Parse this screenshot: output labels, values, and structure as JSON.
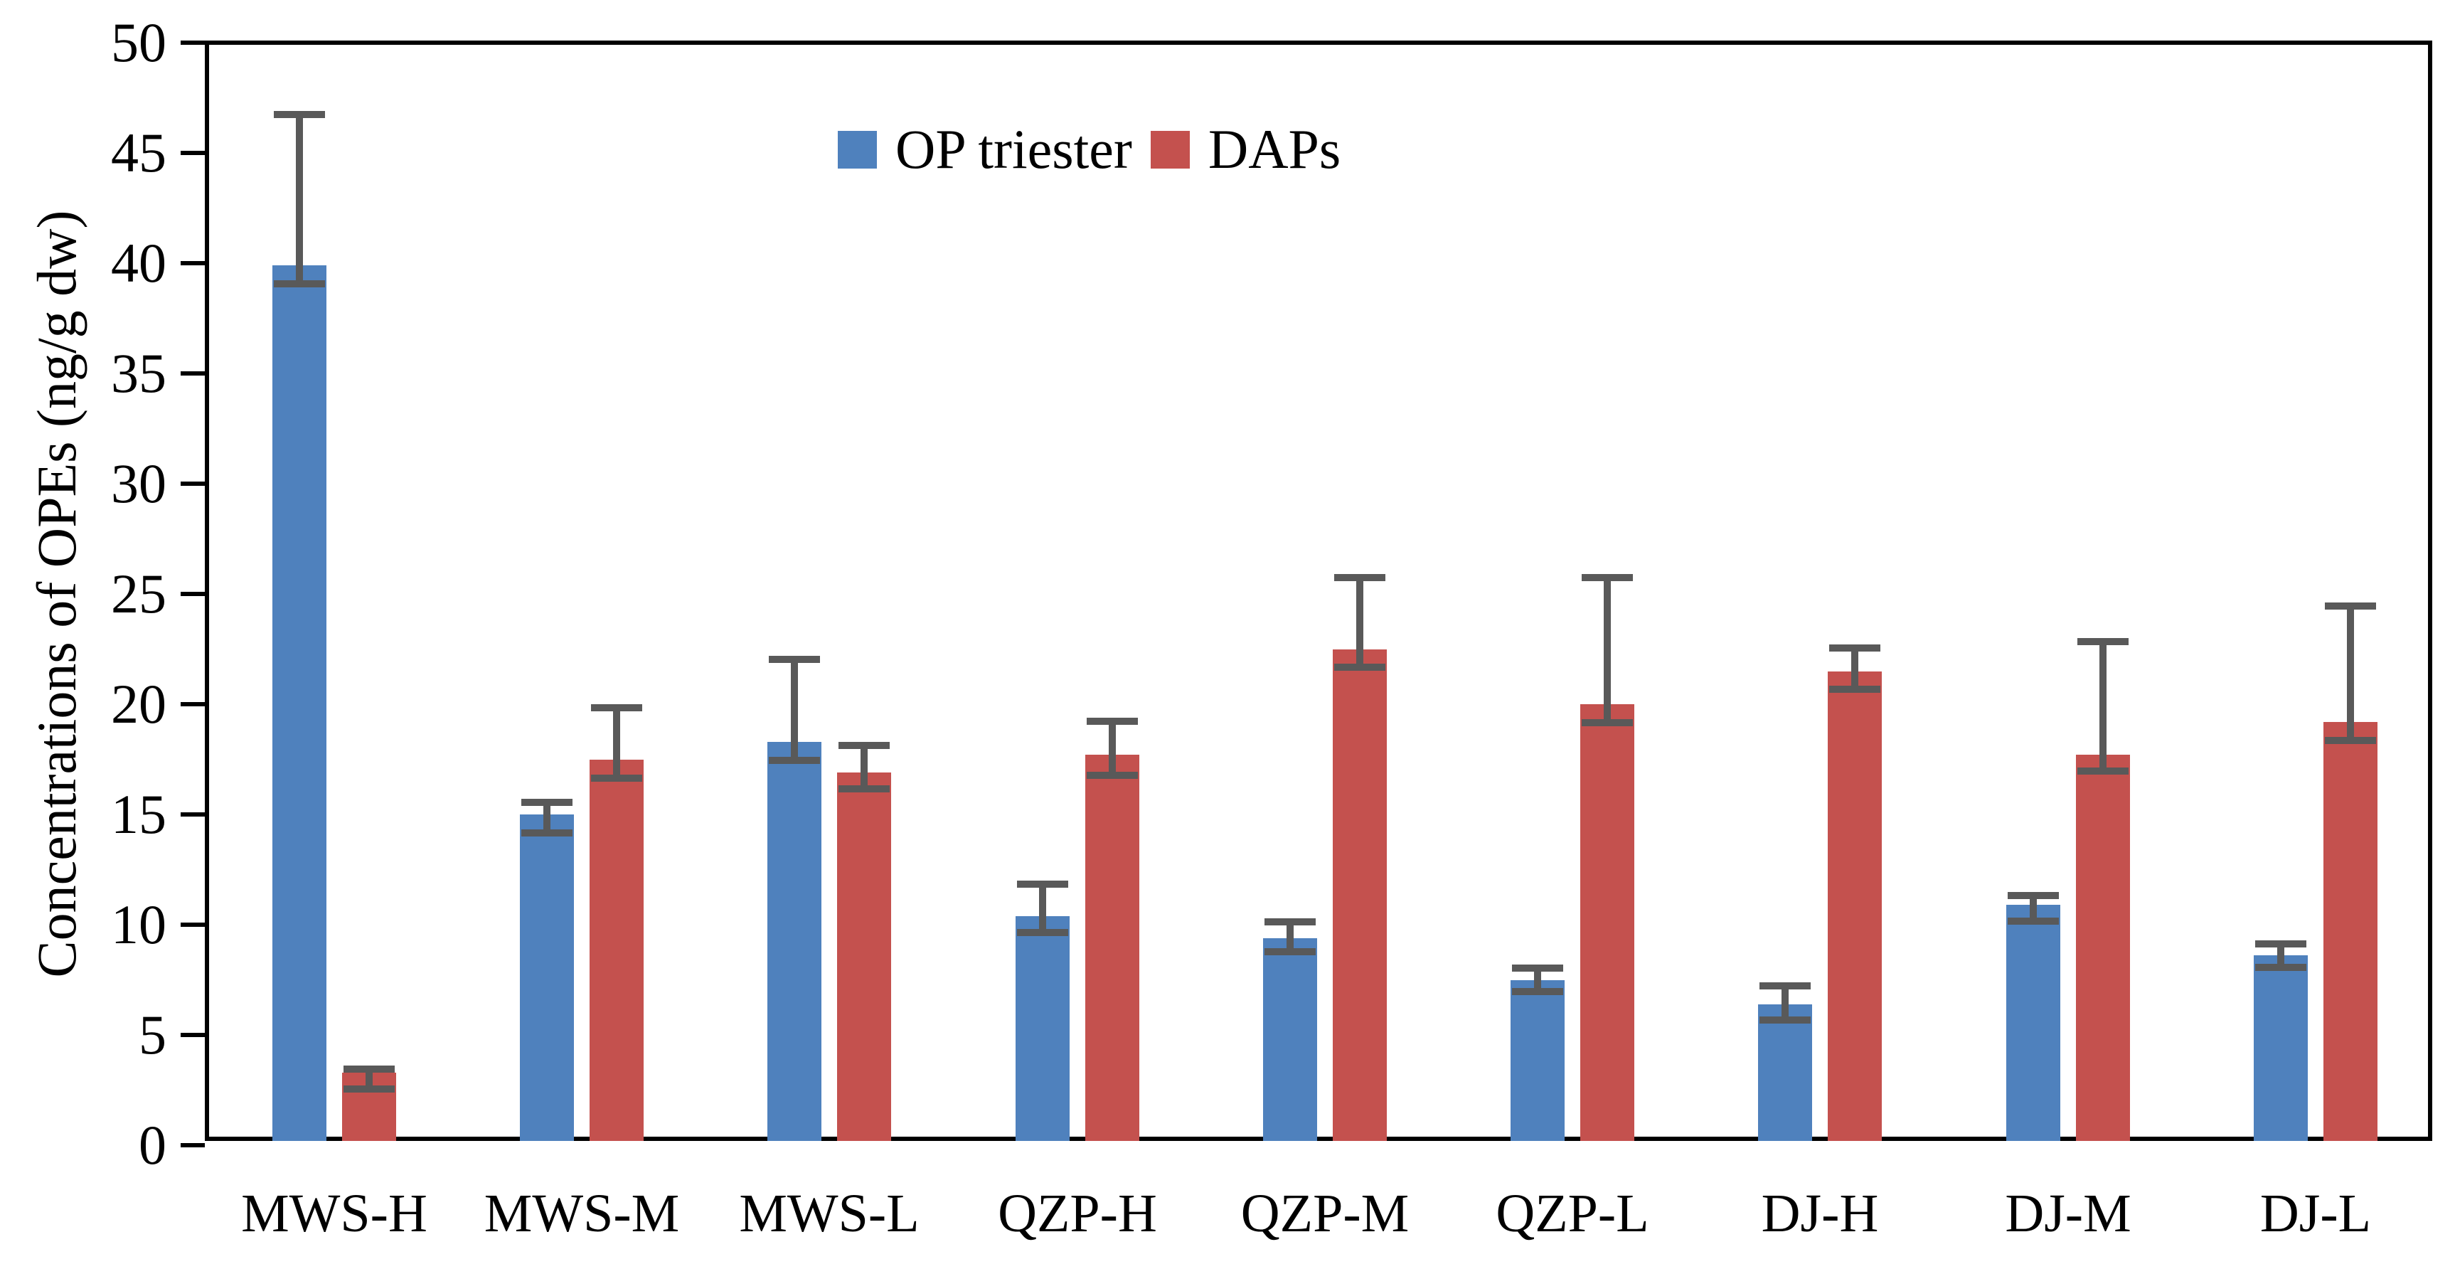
{
  "chart_data": {
    "type": "bar",
    "title": "",
    "ylabel": "Concentrations of OPEs (ng/g dw)",
    "xlabel": "",
    "ylim": [
      0,
      50
    ],
    "ytick_step": 5,
    "y_tick_labels": [
      "0",
      "5",
      "10",
      "15",
      "20",
      "25",
      "30",
      "35",
      "40",
      "45",
      "50"
    ],
    "grid": false,
    "legend_position": "top-center-inside",
    "categories": [
      "MWS-H",
      "MWS-M",
      "MWS-L",
      "QZP-H",
      "QZP-M",
      "QZP-L",
      "DJ-H",
      "DJ-M",
      "DJ-L"
    ],
    "series": [
      {
        "name": "OP triester",
        "color": "#4F81BD",
        "values": [
          39.9,
          15.0,
          18.3,
          10.4,
          9.4,
          7.5,
          6.4,
          10.9,
          8.6
        ],
        "error_upper": [
          46.9,
          15.7,
          22.2,
          12.0,
          10.3,
          8.2,
          7.4,
          11.5,
          9.3
        ],
        "error_lower": [
          38.9,
          14.0,
          17.3,
          9.5,
          8.6,
          6.8,
          5.5,
          10.0,
          7.9
        ]
      },
      {
        "name": "DAPs",
        "color": "#C4514E",
        "values": [
          3.3,
          17.5,
          16.9,
          17.7,
          22.5,
          20.0,
          21.5,
          17.7,
          19.2
        ],
        "error_upper": [
          3.6,
          20.0,
          18.3,
          19.4,
          25.9,
          25.9,
          22.7,
          23.0,
          24.6
        ],
        "error_lower": [
          2.4,
          16.5,
          16.0,
          16.6,
          21.5,
          19.0,
          20.5,
          16.8,
          18.2
        ]
      }
    ],
    "error_bar_color": "#595959",
    "axis_color": "#000000"
  }
}
